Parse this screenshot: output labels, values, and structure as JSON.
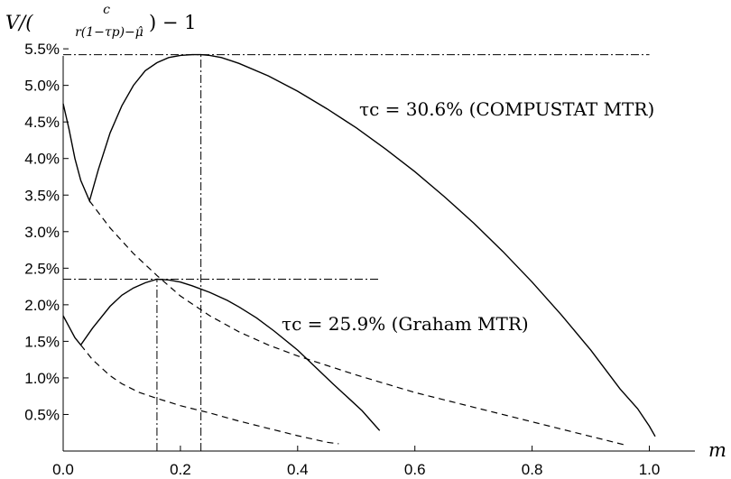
{
  "chart_data": {
    "type": "line",
    "ylabel": {
      "prefix": "V/(",
      "numerator": "c",
      "denominator": "r(1−τp)−μ̂",
      "suffix": ") − 1"
    },
    "xlabel": "m",
    "xlim": [
      0.0,
      1.05
    ],
    "ylim": [
      0.0,
      5.6
    ],
    "xticks": [
      0.0,
      0.2,
      0.4,
      0.6,
      0.8,
      1.0
    ],
    "xtick_labels": [
      "0.0",
      "0.2",
      "0.4",
      "0.6",
      "0.8",
      "1.0"
    ],
    "yticks": [
      0.5,
      1.0,
      1.5,
      2.0,
      2.5,
      3.0,
      3.5,
      4.0,
      4.5,
      5.0,
      5.5
    ],
    "ytick_labels": [
      "0.5%",
      "1.0%",
      "1.5%",
      "2.0%",
      "2.5%",
      "3.0%",
      "3.5%",
      "4.0%",
      "4.5%",
      "5.0%",
      "5.5%"
    ],
    "annotations": [
      {
        "text": "τc = 30.6% (COMPUSTAT MTR)",
        "x": 0.48,
        "y": 5.05
      },
      {
        "text": "τc = 25.9% (Graham MTR)",
        "x": 0.34,
        "y": 1.88
      }
    ],
    "reference_lines": [
      {
        "orientation": "horizontal",
        "y": 5.42,
        "from": 0.0,
        "to": 1.0
      },
      {
        "orientation": "vertical",
        "x": 0.235,
        "from": 0.0,
        "to": 5.42
      },
      {
        "orientation": "horizontal",
        "y": 2.35,
        "from": 0.0,
        "to": 0.54
      },
      {
        "orientation": "vertical",
        "x": 0.16,
        "from": 0.0,
        "to": 2.35
      }
    ],
    "series": [
      {
        "style": "solid",
        "x": [
          0.0,
          0.01,
          0.02,
          0.03,
          0.045,
          0.06,
          0.08,
          0.1,
          0.12,
          0.14,
          0.16,
          0.18,
          0.2,
          0.22,
          0.235,
          0.25,
          0.27,
          0.3,
          0.35,
          0.4,
          0.45,
          0.5,
          0.55,
          0.6,
          0.65,
          0.7,
          0.75,
          0.8,
          0.85,
          0.9,
          0.95,
          0.98,
          1.0,
          1.01
        ],
        "y": [
          4.75,
          4.4,
          4.0,
          3.7,
          3.42,
          3.85,
          4.35,
          4.72,
          5.0,
          5.2,
          5.31,
          5.38,
          5.41,
          5.42,
          5.42,
          5.41,
          5.38,
          5.3,
          5.13,
          4.92,
          4.68,
          4.42,
          4.13,
          3.82,
          3.48,
          3.12,
          2.73,
          2.31,
          1.86,
          1.38,
          0.85,
          0.58,
          0.34,
          0.2
        ]
      },
      {
        "style": "dashed",
        "x": [
          0.045,
          0.08,
          0.12,
          0.16,
          0.2,
          0.25,
          0.3,
          0.35,
          0.4,
          0.5,
          0.6,
          0.7,
          0.8,
          0.9,
          0.96
        ],
        "y": [
          3.42,
          3.05,
          2.7,
          2.4,
          2.12,
          1.85,
          1.63,
          1.45,
          1.3,
          1.04,
          0.8,
          0.6,
          0.4,
          0.2,
          0.08
        ]
      },
      {
        "style": "solid",
        "x": [
          0.0,
          0.01,
          0.02,
          0.03,
          0.05,
          0.08,
          0.1,
          0.12,
          0.14,
          0.16,
          0.18,
          0.2,
          0.22,
          0.25,
          0.28,
          0.3,
          0.33,
          0.36,
          0.4,
          0.43,
          0.46,
          0.49,
          0.51,
          0.53,
          0.54
        ],
        "y": [
          1.85,
          1.7,
          1.55,
          1.45,
          1.68,
          1.98,
          2.13,
          2.23,
          2.3,
          2.35,
          2.34,
          2.31,
          2.26,
          2.17,
          2.06,
          1.97,
          1.82,
          1.64,
          1.38,
          1.15,
          0.92,
          0.7,
          0.55,
          0.37,
          0.28
        ]
      },
      {
        "style": "dashed",
        "x": [
          0.03,
          0.05,
          0.08,
          0.1,
          0.13,
          0.16,
          0.2,
          0.25,
          0.3,
          0.35,
          0.4,
          0.45,
          0.47
        ],
        "y": [
          1.45,
          1.25,
          1.03,
          0.92,
          0.8,
          0.72,
          0.62,
          0.52,
          0.41,
          0.31,
          0.21,
          0.12,
          0.1
        ]
      }
    ]
  }
}
